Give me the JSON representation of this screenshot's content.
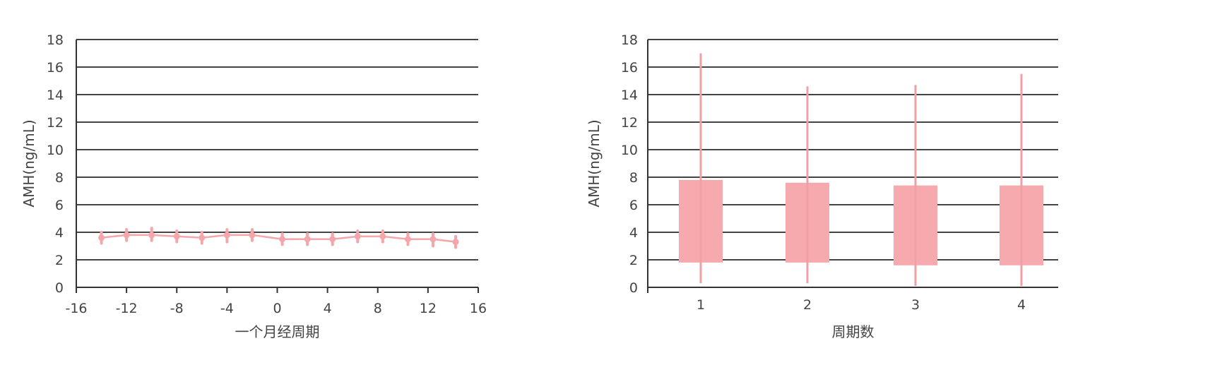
{
  "colors": {
    "series": "#f4a6aa",
    "box": "#f7aaad",
    "whisker": "#f0a0a4",
    "grid": "#444444",
    "text": "#444444"
  },
  "chart_data": [
    {
      "type": "line",
      "xlabel": "一个月经周期",
      "ylabel": "AMH(ng/mL)",
      "xlim": [
        -16,
        16
      ],
      "ylim": [
        0,
        18
      ],
      "xticks": [
        "-16",
        "-12",
        "-8",
        "-4",
        "0",
        "4",
        "8",
        "12",
        "16"
      ],
      "yticks": [
        "0",
        "2",
        "4",
        "6",
        "8",
        "10",
        "12",
        "14",
        "16",
        "18"
      ],
      "grid": true,
      "series": [
        {
          "x": [
            -14,
            -12,
            -10,
            -8,
            -6,
            -4,
            -2,
            0.4,
            2.4,
            4.4,
            6.4,
            8.4,
            10.4,
            12.4,
            14.2
          ],
          "y": [
            3.6,
            3.8,
            3.8,
            3.7,
            3.6,
            3.8,
            3.8,
            3.5,
            3.5,
            3.5,
            3.7,
            3.7,
            3.5,
            3.5,
            3.3
          ],
          "err_low": [
            3.2,
            3.4,
            3.4,
            3.3,
            3.2,
            3.3,
            3.4,
            3.1,
            3.1,
            3.1,
            3.3,
            3.3,
            3.1,
            3.0,
            2.9
          ],
          "err_high": [
            4.0,
            4.2,
            4.3,
            4.1,
            4.0,
            4.2,
            4.2,
            3.9,
            3.9,
            3.9,
            4.1,
            4.1,
            3.9,
            3.9,
            3.7
          ]
        }
      ]
    },
    {
      "type": "box",
      "xlabel": "周期数",
      "ylabel": "AMH(ng/mL)",
      "ylim": [
        0,
        18
      ],
      "yticks": [
        "0",
        "2",
        "4",
        "6",
        "8",
        "10",
        "12",
        "14",
        "16",
        "18"
      ],
      "grid": true,
      "categories": [
        "1",
        "2",
        "3",
        "4"
      ],
      "q1": [
        1.8,
        1.8,
        1.6,
        1.6
      ],
      "q3": [
        7.8,
        7.6,
        7.4,
        7.4
      ],
      "min": [
        0.3,
        0.3,
        0.1,
        0.1
      ],
      "max": [
        17.0,
        14.6,
        14.7,
        15.5
      ]
    }
  ]
}
